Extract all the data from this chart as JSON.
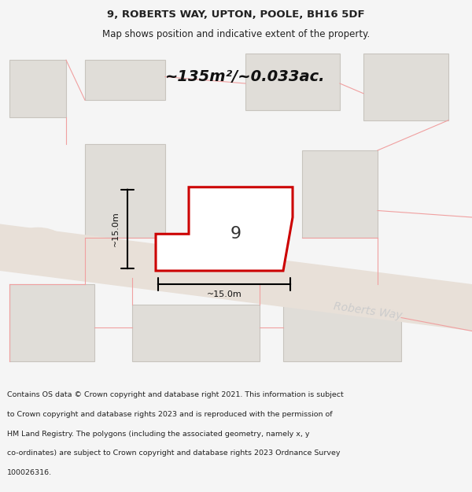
{
  "title_line1": "9, ROBERTS WAY, UPTON, POOLE, BH16 5DF",
  "title_line2": "Map shows position and indicative extent of the property.",
  "area_label": "~135m²/~0.033ac.",
  "house_number": "9",
  "dim_label": "~15.0m",
  "street_name_main": "Roberts Way",
  "street_name_lower": "Roberts Way",
  "footer": "Contains OS data © Crown copyright and database right 2021. This information is subject to Crown copyright and database rights 2023 and is reproduced with the permission of HM Land Registry. The polygons (including the associated geometry, namely x, y co-ordinates) are subject to Crown copyright and database rights 2023 Ordnance Survey 100026316.",
  "bg_color": "#f5f5f5",
  "map_bg": "#ffffff",
  "road_color": "#e8e0d8",
  "building_fill": "#e0ddd8",
  "building_outline": "#c8c4be",
  "property_fill": "#ffffff",
  "property_outline": "#cc0000",
  "faint_line_color": "#f0a0a0",
  "title_color": "#222222",
  "footer_color": "#222222"
}
